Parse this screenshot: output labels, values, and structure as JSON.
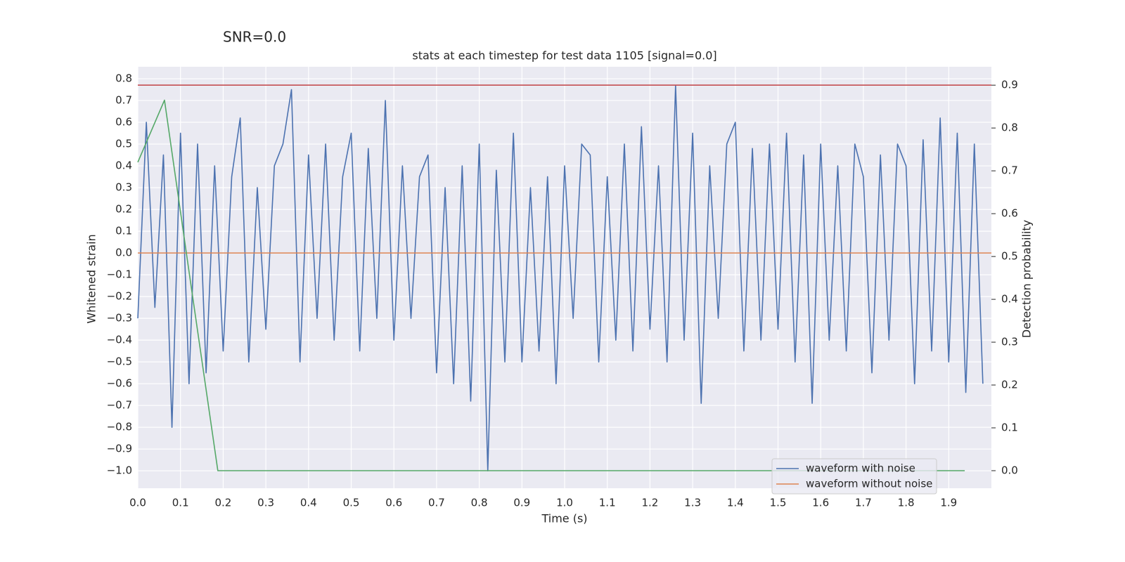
{
  "chart_data": {
    "type": "line",
    "suptitle": "SNR=0.0",
    "title": "stats at each timestep for test data 1105 [signal=0.0]",
    "xlabel": "Time (s)",
    "ylabel": "Whitened strain",
    "y2label": "Detection probability",
    "xlim": [
      0.0,
      2.0
    ],
    "ylim": [
      -1.08,
      0.855
    ],
    "y2lim": [
      -0.041,
      0.943
    ],
    "xticks": [
      {
        "value": 0.0,
        "label": "0.0"
      },
      0.1,
      0.2,
      0.3,
      0.4,
      0.5,
      0.6,
      0.7,
      0.8,
      0.9,
      {
        "value": 1.0,
        "label": "1.0"
      },
      1.1,
      1.2,
      1.3,
      1.4,
      1.5,
      1.6,
      1.7,
      1.8,
      1.9
    ],
    "yticks": [
      {
        "value": -1.0,
        "label": "−1.0"
      },
      {
        "value": -0.9,
        "label": "−0.9"
      },
      {
        "value": -0.8,
        "label": "−0.8"
      },
      {
        "value": -0.7,
        "label": "−0.7"
      },
      {
        "value": -0.6,
        "label": "−0.6"
      },
      {
        "value": -0.5,
        "label": "−0.5"
      },
      {
        "value": -0.4,
        "label": "−0.4"
      },
      {
        "value": -0.3,
        "label": "−0.3"
      },
      {
        "value": -0.2,
        "label": "−0.2"
      },
      {
        "value": -0.1,
        "label": "−0.1"
      },
      {
        "value": 0.0,
        "label": "0.0"
      },
      0.1,
      0.2,
      0.3,
      0.4,
      0.5,
      0.6,
      0.7,
      0.8
    ],
    "y2ticks": [
      {
        "value": 0.0,
        "label": "0.0"
      },
      0.1,
      0.2,
      0.3,
      0.4,
      0.5,
      0.6,
      0.7,
      0.8,
      0.9
    ],
    "grid": true,
    "legend": "lower right",
    "series": [
      {
        "name": "waveform with noise",
        "color": "#4c72b0",
        "x": [
          0.0,
          0.02,
          0.04,
          0.06,
          0.08,
          0.1,
          0.12,
          0.14,
          0.16,
          0.18,
          0.2,
          0.22,
          0.24,
          0.26,
          0.28,
          0.3,
          0.32,
          0.34,
          0.36,
          0.38,
          0.4,
          0.42,
          0.44,
          0.46,
          0.48,
          0.5,
          0.52,
          0.54,
          0.56,
          0.58,
          0.6,
          0.62,
          0.64,
          0.66,
          0.68,
          0.7,
          0.72,
          0.74,
          0.76,
          0.78,
          0.8,
          0.82,
          0.84,
          0.86,
          0.88,
          0.9,
          0.92,
          0.94,
          0.96,
          0.98,
          1.0,
          1.02,
          1.04,
          1.06,
          1.08,
          1.1,
          1.12,
          1.14,
          1.16,
          1.18,
          1.2,
          1.22,
          1.24,
          1.26,
          1.28,
          1.3,
          1.32,
          1.34,
          1.36,
          1.38,
          1.4,
          1.42,
          1.44,
          1.46,
          1.48,
          1.5,
          1.52,
          1.54,
          1.56,
          1.58,
          1.6,
          1.62,
          1.64,
          1.66,
          1.68,
          1.7,
          1.72,
          1.74,
          1.76,
          1.78,
          1.8,
          1.82,
          1.84,
          1.86,
          1.88,
          1.9,
          1.92,
          1.94,
          1.96,
          1.98
        ],
        "values": [
          -0.3,
          0.6,
          -0.25,
          0.45,
          -0.8,
          0.55,
          -0.6,
          0.5,
          -0.55,
          0.4,
          -0.45,
          0.35,
          0.62,
          -0.5,
          0.3,
          -0.35,
          0.4,
          0.5,
          0.75,
          -0.5,
          0.45,
          -0.3,
          0.5,
          -0.4,
          0.35,
          0.55,
          -0.45,
          0.48,
          -0.3,
          0.7,
          -0.4,
          0.4,
          -0.3,
          0.35,
          0.45,
          -0.55,
          0.3,
          -0.6,
          0.4,
          -0.68,
          0.5,
          -1.0,
          0.38,
          -0.5,
          0.55,
          -0.5,
          0.3,
          -0.45,
          0.35,
          -0.6,
          0.4,
          -0.3,
          0.5,
          0.45,
          -0.5,
          0.35,
          -0.4,
          0.5,
          -0.45,
          0.58,
          -0.35,
          0.4,
          -0.5,
          0.77,
          -0.4,
          0.55,
          -0.69,
          0.4,
          -0.3,
          0.5,
          0.6,
          -0.45,
          0.48,
          -0.4,
          0.5,
          -0.35,
          0.55,
          -0.5,
          0.45,
          -0.69,
          0.5,
          -0.4,
          0.4,
          -0.45,
          0.5,
          0.35,
          -0.55,
          0.45,
          -0.4,
          0.5,
          0.4,
          -0.6,
          0.52,
          -0.45,
          0.62,
          -0.5,
          0.55,
          -0.64,
          0.5,
          -0.6
        ]
      },
      {
        "name": "waveform without noise",
        "color": "#dd8452",
        "x": [
          0.0,
          2.0
        ],
        "values": [
          0.0,
          0.0
        ]
      },
      {
        "color": "#55a868",
        "axis": "y2",
        "x": [
          0.0,
          0.0625,
          0.125,
          0.1875,
          0.25,
          0.3125,
          0.375,
          0.4375,
          0.5,
          0.5625,
          0.625,
          0.6875,
          0.75,
          0.8125,
          0.875,
          0.9375,
          1.0,
          1.0625,
          1.125,
          1.1875,
          1.25,
          1.3125,
          1.375,
          1.4375,
          1.5,
          1.5625,
          1.625,
          1.6875,
          1.75,
          1.8125,
          1.875,
          1.9375
        ],
        "values": [
          0.72,
          0.865,
          0.43,
          0.0,
          0.0,
          0.0,
          0.0,
          0.0,
          0.0,
          0.0,
          0.0,
          0.0,
          0.0,
          0.0,
          0.0,
          0.0,
          0.0,
          0.0,
          0.0,
          0.0,
          0.0,
          0.0,
          0.0,
          0.0,
          0.0,
          0.0,
          0.0,
          0.0,
          0.0,
          0.0,
          0.0,
          0.0
        ]
      },
      {
        "color": "#c44e52",
        "axis": "y2",
        "x": [
          0.0,
          2.0
        ],
        "values": [
          0.9,
          0.9
        ]
      }
    ]
  }
}
